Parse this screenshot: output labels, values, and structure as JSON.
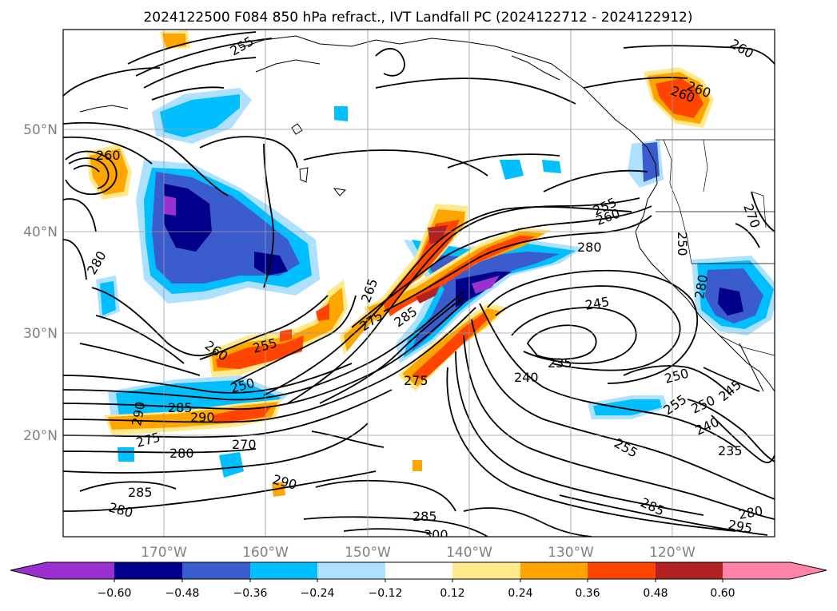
{
  "title": "2024122500 F084 850 hPa refract., IVT Landfall PC (2024122712 - 2024122912)",
  "lat_labels": [
    "50°N",
    "40°N",
    "30°N",
    "20°N"
  ],
  "lon_labels": [
    "170°W",
    "160°W",
    "150°W",
    "140°W",
    "130°W",
    "120°W"
  ],
  "contour_labels": [
    "255",
    "260",
    "280",
    "265",
    "275",
    "285",
    "275",
    "260",
    "255",
    "250",
    "290",
    "285",
    "275",
    "270",
    "280",
    "290",
    "285",
    "280",
    "290",
    "300",
    "285",
    "255",
    "260",
    "280",
    "245",
    "235",
    "240",
    "250",
    "255",
    "250",
    "245",
    "240",
    "235",
    "255",
    "285",
    "280",
    "295",
    "260",
    "260",
    "260",
    "270",
    "280",
    "250"
  ],
  "colorbar": {
    "ticks": [
      "−0.60",
      "−0.48",
      "−0.36",
      "−0.24",
      "−0.12",
      "0.12",
      "0.24",
      "0.36",
      "0.48",
      "0.60"
    ],
    "colors": [
      "#9b30d0",
      "#00008b",
      "#3a5ccc",
      "#00bfff",
      "#aee0ff",
      "#ffffff",
      "#ffe98a",
      "#ffa500",
      "#ff4500",
      "#b22222",
      "#ff85a8"
    ]
  }
}
